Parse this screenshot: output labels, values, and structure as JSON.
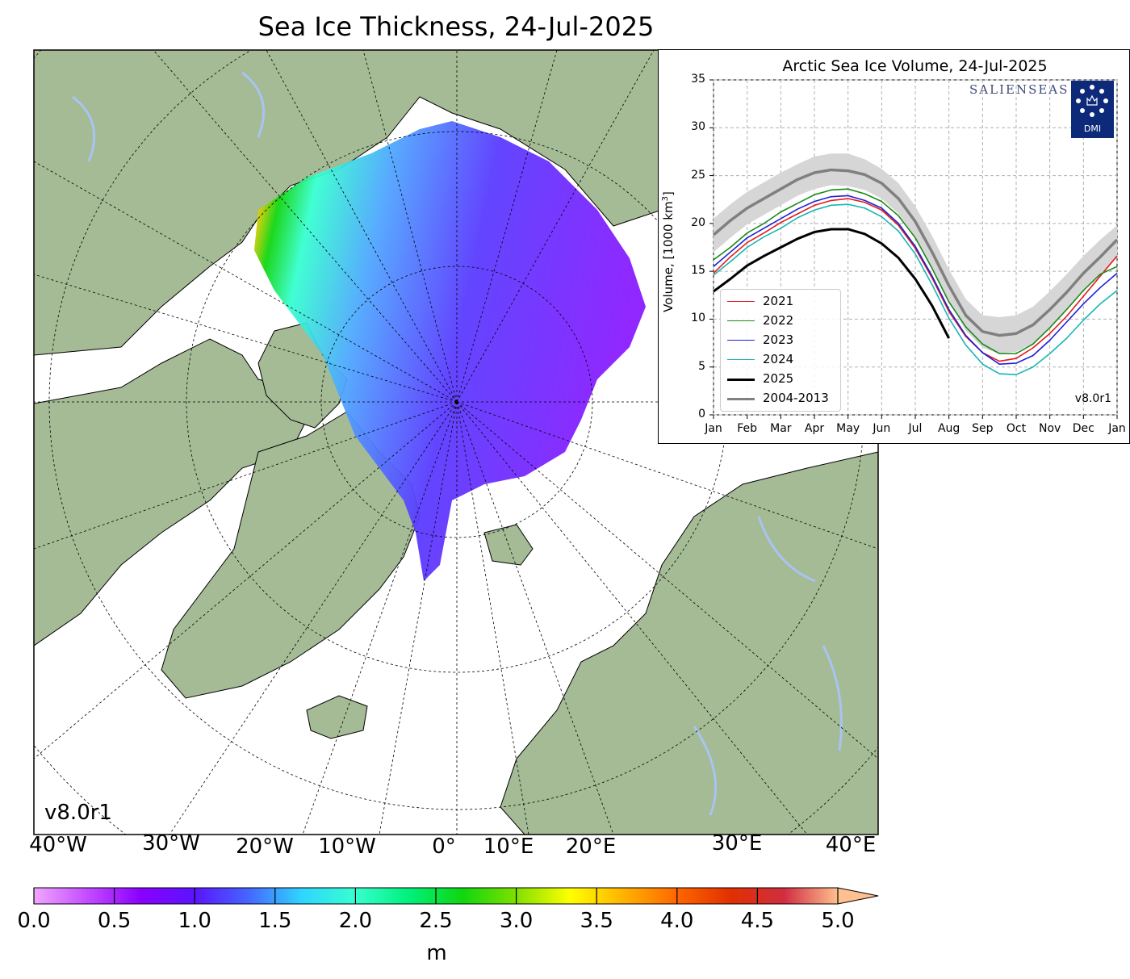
{
  "title": "Sea Ice Thickness, 24-Jul-2025",
  "map": {
    "version_label": "v8.0r1",
    "longitude_labels": [
      "40°W",
      "30°W",
      "20°W",
      "10°W",
      "0°",
      "10°E",
      "20°E",
      "30°E",
      "40°E"
    ],
    "colors": {
      "land": "#a4bb96",
      "ocean": "#ffffff",
      "lakes": "#a8c4f0"
    }
  },
  "colorbar": {
    "ticks": [
      "0.0",
      "0.5",
      "1.0",
      "1.5",
      "2.0",
      "2.5",
      "3.0",
      "3.5",
      "4.0",
      "4.5",
      "5.0"
    ],
    "unit": "m",
    "range": [
      0,
      5
    ],
    "extend": "max",
    "colors": [
      "#f2a6ff",
      "#c34bff",
      "#8a00ff",
      "#5a14ff",
      "#4566ff",
      "#2fd5ff",
      "#37ffd0",
      "#00f07a",
      "#10d610",
      "#7fe000",
      "#ffff00",
      "#ffb300",
      "#ff6600",
      "#e03000",
      "#d02d40",
      "#ffc090"
    ]
  },
  "inset": {
    "brand": "SALIENSEAS",
    "logo_text": "DMI",
    "version_label": "v8.0r1",
    "chart_data": {
      "type": "line",
      "title": "Arctic Sea Ice Volume, 24-Jul-2025",
      "ylabel": "Volume, [1000 km",
      "ylabel_sup": "3",
      "ylabel_end": "]",
      "ylim": [
        0,
        35
      ],
      "yticks": [
        "0",
        "5",
        "10",
        "15",
        "20",
        "25",
        "30",
        "35"
      ],
      "xticks": [
        "Jan",
        "Feb",
        "Mar",
        "Apr",
        "May",
        "Jun",
        "Jul",
        "Aug",
        "Sep",
        "Oct",
        "Nov",
        "Dec",
        "Jan"
      ],
      "grid": true,
      "legend_position": "lower-left",
      "x_months": [
        0,
        0.5,
        1,
        1.5,
        2,
        2.5,
        3,
        3.5,
        4,
        4.5,
        5,
        5.5,
        6,
        6.5,
        7,
        7.5,
        8,
        8.5,
        9,
        9.5,
        10,
        10.5,
        11,
        11.5,
        12
      ],
      "series": [
        {
          "name": "2021",
          "color": "#e41a1c",
          "width": 1.6,
          "values": [
            14.8,
            16.5,
            18.0,
            19.0,
            20.1,
            21.0,
            21.9,
            22.4,
            22.6,
            22.2,
            21.4,
            19.8,
            17.4,
            14.3,
            10.8,
            8.2,
            6.5,
            5.6,
            5.9,
            7.0,
            8.5,
            10.3,
            12.4,
            14.5,
            16.6
          ]
        },
        {
          "name": "2022",
          "color": "#1a8a1a",
          "width": 1.6,
          "values": [
            16.2,
            17.5,
            19.0,
            20.0,
            21.2,
            22.1,
            23.0,
            23.5,
            23.6,
            23.1,
            22.3,
            20.8,
            18.5,
            15.3,
            11.8,
            9.2,
            7.4,
            6.4,
            6.4,
            7.4,
            9.1,
            11.0,
            13.0,
            14.7,
            15.5
          ]
        },
        {
          "name": "2023",
          "color": "#1f1fd6",
          "width": 1.6,
          "values": [
            15.5,
            17.0,
            18.5,
            19.5,
            20.5,
            21.5,
            22.3,
            22.8,
            22.9,
            22.4,
            21.6,
            20.0,
            17.6,
            14.5,
            11.0,
            8.3,
            6.5,
            5.3,
            5.4,
            6.2,
            7.8,
            9.7,
            11.6,
            13.3,
            14.8
          ]
        },
        {
          "name": "2024",
          "color": "#17b5b5",
          "width": 1.6,
          "values": [
            14.6,
            16.0,
            17.5,
            18.6,
            19.5,
            20.6,
            21.4,
            21.9,
            22.0,
            21.6,
            20.7,
            19.2,
            16.8,
            13.6,
            10.1,
            7.3,
            5.3,
            4.3,
            4.2,
            5.0,
            6.4,
            8.0,
            9.9,
            11.6,
            13.0
          ]
        },
        {
          "name": "2025",
          "color": "#000000",
          "width": 3,
          "values": [
            12.9,
            14.2,
            15.6,
            16.6,
            17.5,
            18.4,
            19.1,
            19.4,
            19.4,
            18.9,
            17.9,
            16.4,
            14.2,
            11.4,
            8.0
          ]
        },
        {
          "name": "2004-2013",
          "color": "#808080",
          "width": 3.5,
          "values": [
            18.8,
            20.3,
            21.6,
            22.6,
            23.6,
            24.6,
            25.3,
            25.6,
            25.5,
            25.1,
            24.2,
            22.6,
            20.2,
            17.0,
            13.5,
            10.4,
            8.7,
            8.3,
            8.5,
            9.4,
            11.0,
            12.8,
            14.8,
            16.5,
            18.3
          ],
          "band_upper": [
            20.5,
            22.0,
            23.3,
            24.3,
            25.3,
            26.2,
            27.0,
            27.3,
            27.3,
            26.7,
            25.7,
            24.2,
            21.8,
            18.7,
            15.2,
            12.1,
            10.4,
            10.2,
            10.4,
            11.3,
            12.9,
            14.7,
            16.6,
            18.3,
            19.8
          ],
          "band_lower": [
            17.0,
            18.5,
            19.9,
            20.9,
            21.9,
            22.9,
            23.6,
            24.0,
            23.9,
            23.5,
            22.6,
            21.0,
            18.6,
            15.4,
            11.9,
            8.8,
            7.0,
            6.4,
            6.6,
            7.5,
            9.1,
            10.9,
            12.9,
            14.7,
            16.5
          ]
        }
      ]
    }
  }
}
